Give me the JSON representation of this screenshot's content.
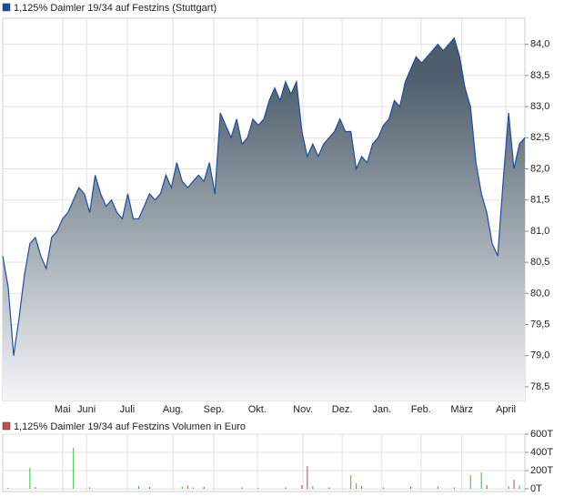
{
  "chart_data": [
    {
      "type": "area",
      "title": "1,125% Daimler 19/34 auf Festzins (Stuttgart)",
      "color": "#1f4e9c",
      "fill_top": "#4d5d6b",
      "fill_bottom": "#f4f6f8",
      "values": [
        80.6,
        80.1,
        79.0,
        79.6,
        80.3,
        80.8,
        80.9,
        80.6,
        80.4,
        80.9,
        81.0,
        81.2,
        81.3,
        81.5,
        81.7,
        81.6,
        81.3,
        81.9,
        81.6,
        81.4,
        81.5,
        81.3,
        81.2,
        81.6,
        81.2,
        81.2,
        81.4,
        81.6,
        81.5,
        81.6,
        81.9,
        81.7,
        82.1,
        81.8,
        81.7,
        81.8,
        81.9,
        81.8,
        82.1,
        81.6,
        82.9,
        82.7,
        82.5,
        82.8,
        82.4,
        82.5,
        82.8,
        82.7,
        82.8,
        83.1,
        83.3,
        83.1,
        83.4,
        83.2,
        83.4,
        82.6,
        82.2,
        82.4,
        82.2,
        82.4,
        82.5,
        82.6,
        82.8,
        82.6,
        82.6,
        82.0,
        82.2,
        82.1,
        82.4,
        82.5,
        82.7,
        82.8,
        83.1,
        83.0,
        83.4,
        83.6,
        83.8,
        83.7,
        83.8,
        83.9,
        84.0,
        83.9,
        84.0,
        84.1,
        83.8,
        83.3,
        83.0,
        82.1,
        81.6,
        81.3,
        80.8,
        80.6,
        81.8,
        82.9,
        82.0,
        82.4,
        82.5
      ],
      "xlim": [
        0,
        96
      ],
      "xticks": [
        {
          "value": 11,
          "label": "Mai"
        },
        {
          "value": 15.4,
          "label": "Juni"
        },
        {
          "value": 22.9,
          "label": "Juli"
        },
        {
          "value": 31.3,
          "label": "Aug."
        },
        {
          "value": 38.8,
          "label": "Sep."
        },
        {
          "value": 46.8,
          "label": "Okt."
        },
        {
          "value": 55.2,
          "label": "Nov."
        },
        {
          "value": 62.4,
          "label": "Dez."
        },
        {
          "value": 69.7,
          "label": "Jan."
        },
        {
          "value": 76.9,
          "label": "Feb."
        },
        {
          "value": 84.4,
          "label": "März"
        },
        {
          "value": 92.5,
          "label": "April"
        }
      ],
      "ylim": [
        78.28,
        84.42
      ],
      "yticks": [
        {
          "value": 78.5,
          "label": "78,5"
        },
        {
          "value": 79,
          "label": "79,0"
        },
        {
          "value": 79.5,
          "label": "79,5"
        },
        {
          "value": 80,
          "label": "80,0"
        },
        {
          "value": 80.5,
          "label": "80,5"
        },
        {
          "value": 81,
          "label": "81,0"
        },
        {
          "value": 81.5,
          "label": "81,5"
        },
        {
          "value": 82,
          "label": "82,0"
        },
        {
          "value": 82.5,
          "label": "82,5"
        },
        {
          "value": 83,
          "label": "83,0"
        },
        {
          "value": 83.5,
          "label": "83,5"
        },
        {
          "value": 84,
          "label": "84,0"
        }
      ],
      "grid": true
    },
    {
      "type": "bar",
      "title": "1,125% Daimler 19/34 auf Festzins Volumen in Euro",
      "color": "#c0504d",
      "x": [
        1,
        5,
        6,
        13,
        16,
        25,
        27,
        33,
        34,
        35,
        37,
        44,
        47,
        52,
        55,
        56,
        57,
        60,
        64,
        65,
        66,
        70,
        75,
        80,
        83,
        86,
        88,
        89,
        93,
        94,
        95
      ],
      "values": [
        10,
        230,
        20,
        450,
        15,
        30,
        20,
        25,
        35,
        15,
        20,
        15,
        10,
        15,
        40,
        250,
        30,
        15,
        150,
        60,
        30,
        15,
        20,
        25,
        15,
        150,
        180,
        40,
        30,
        100,
        35
      ],
      "colors": [
        "#d04040",
        "#33bb33",
        "#d04040",
        "#33bb33",
        "#d04040",
        "#33bb33",
        "#d04040",
        "#33bb33",
        "#d04040",
        "#33bb33",
        "#d04040",
        "#d04040",
        "#33bb33",
        "#d04040",
        "#d04040",
        "#d04040",
        "#33bb33",
        "#d04040",
        "#33bb33",
        "#33bb33",
        "#d04040",
        "#33bb33",
        "#d04040",
        "#33bb33",
        "#d04040",
        "#33bb33",
        "#33bb33",
        "#d04040",
        "#33bb33",
        "#d04040",
        "#33bb33"
      ],
      "xlim": [
        0,
        96
      ],
      "ylim": [
        -30,
        600
      ],
      "yticks": [
        {
          "value": 0,
          "label": "0T"
        },
        {
          "value": 200,
          "label": "200T"
        },
        {
          "value": 400,
          "label": "400T"
        },
        {
          "value": 600,
          "label": "600T"
        }
      ],
      "grid": true
    }
  ]
}
